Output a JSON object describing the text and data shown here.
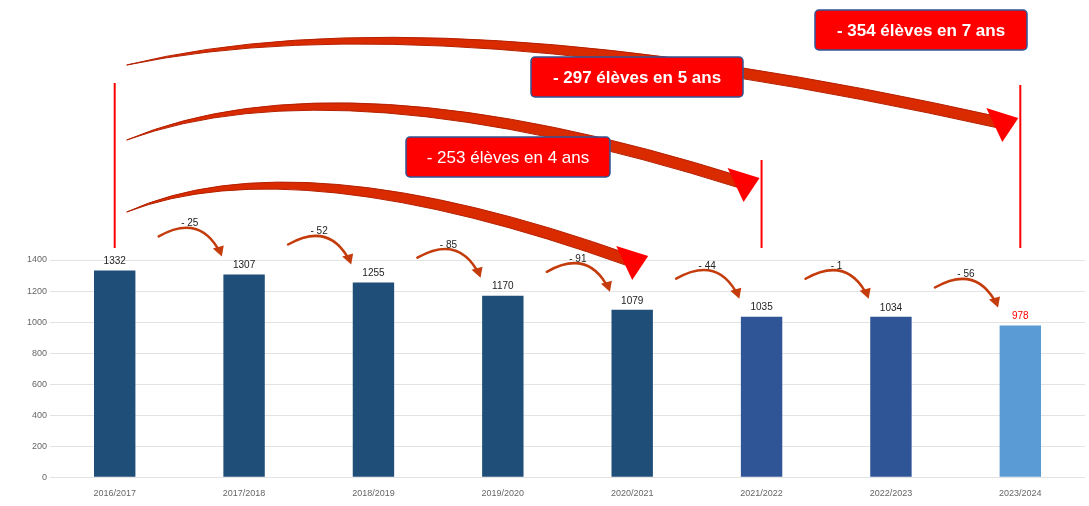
{
  "chart_data": {
    "type": "bar",
    "categories": [
      "2016/2017",
      "2017/2018",
      "2018/2019",
      "2019/2020",
      "2020/2021",
      "2021/2022",
      "2022/2023",
      "2023/2024"
    ],
    "values": [
      1332,
      1307,
      1255,
      1170,
      1079,
      1035,
      1034,
      978
    ],
    "colors": [
      "#1f4e79",
      "#1f4e79",
      "#1f4e79",
      "#1f4e79",
      "#1f4e79",
      "#2f5597",
      "#2f5597",
      "#5b9bd5"
    ],
    "ylim": [
      0,
      1400
    ],
    "yticks": [
      0,
      200,
      400,
      600,
      800,
      1000,
      1200,
      1400
    ],
    "grid": "y",
    "data_labels": true,
    "annotations": [
      "- 354 élèves en 7 ans",
      "- 297 élèves en 5 ans",
      "- 253 élèves en 4 ans",
      "- 25",
      "- 52",
      "- 85",
      "- 91",
      "- 44",
      "- 1",
      "- 56"
    ]
  }
}
